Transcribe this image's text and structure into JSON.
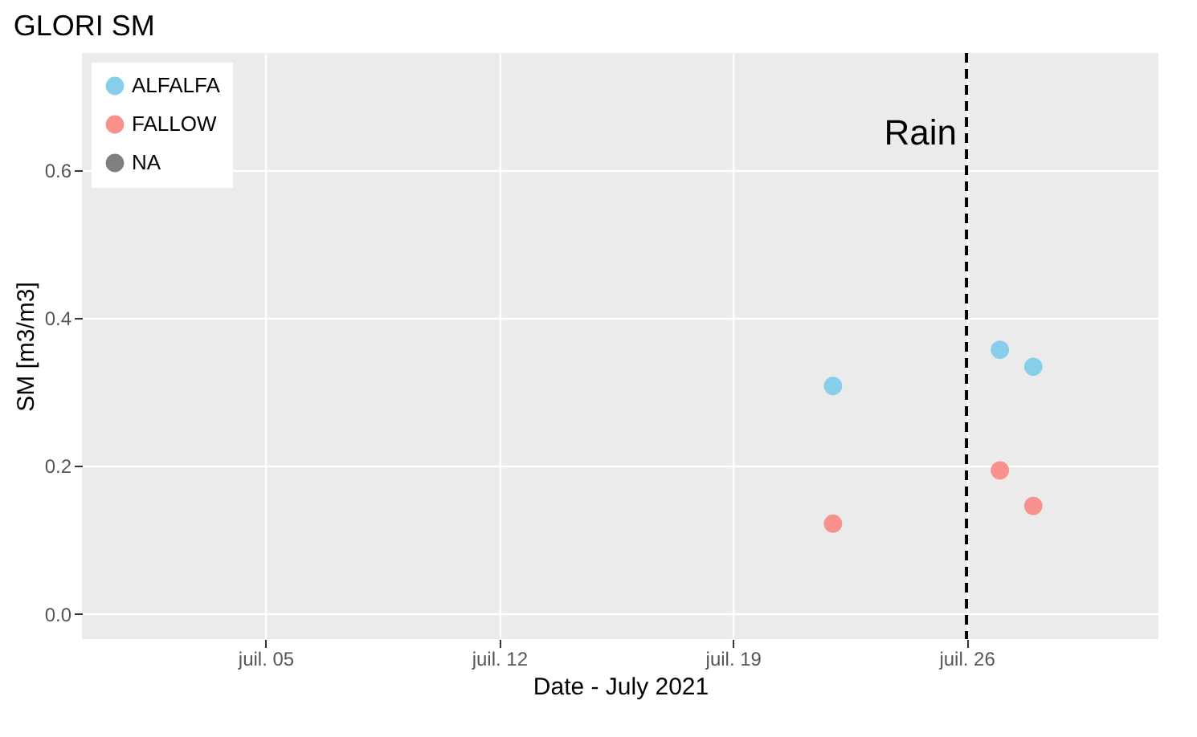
{
  "chart_data": {
    "type": "scatter",
    "title": "GLORI SM",
    "xlabel": "Date - July 2021",
    "ylabel": "SM [m3/m3]",
    "x": [
      "2021-07-22",
      "2021-07-27",
      "2021-07-28"
    ],
    "series": [
      {
        "name": "ALFALFA",
        "color": "#87ceeb",
        "values": [
          0.308,
          0.357,
          0.334
        ]
      },
      {
        "name": "FALLOW",
        "color": "#f8918c",
        "values": [
          0.122,
          0.194,
          0.146
        ]
      },
      {
        "name": "NA",
        "color": "#7f7f7f",
        "values": [
          null,
          null,
          null
        ]
      }
    ],
    "xlim": [
      "2021-06-29T12:00",
      "2021-07-31T18:00"
    ],
    "xticks": [
      {
        "value": "2021-07-05",
        "label": "juil. 05"
      },
      {
        "value": "2021-07-12",
        "label": "juil. 12"
      },
      {
        "value": "2021-07-19",
        "label": "juil. 19"
      },
      {
        "value": "2021-07-26",
        "label": "juil. 26"
      }
    ],
    "ylim": [
      -0.034,
      0.758
    ],
    "yticks": [
      {
        "value": 0,
        "label": "0.0"
      },
      0.2,
      0.4,
      0.6
    ],
    "ref_lines": [
      {
        "axis": "x",
        "value": "2021-07-26",
        "label": "Rain",
        "color": "#000000",
        "line_style": "dashed"
      }
    ],
    "grid": true,
    "legend": "top left",
    "marker": "circle"
  }
}
